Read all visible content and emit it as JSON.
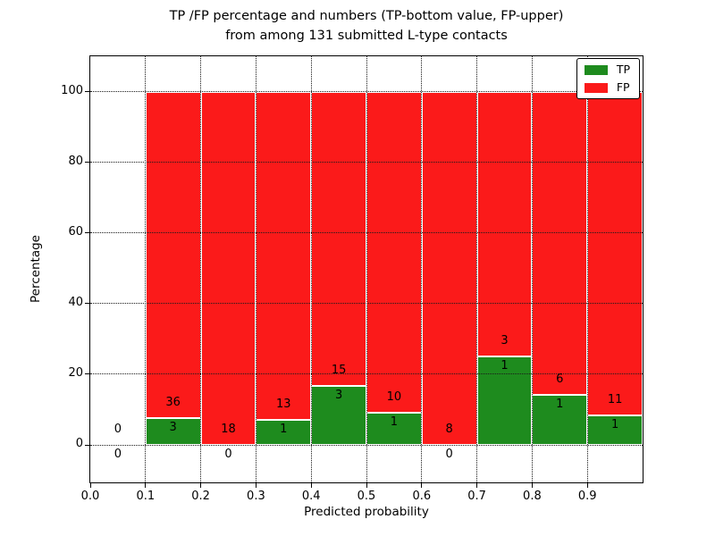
{
  "chart_data": {
    "type": "bar",
    "stacked": true,
    "title_lines": [
      "TP /FP percentage and numbers (TP-bottom value, FP-upper)",
      "from among 131 submitted L-type contacts"
    ],
    "xlabel": "Predicted probability",
    "ylabel": "Percentage",
    "xlim": [
      0.0,
      1.0
    ],
    "ylim": [
      -10.6,
      110.0
    ],
    "xticks": [
      "0.0",
      "0.1",
      "0.2",
      "0.3",
      "0.4",
      "0.5",
      "0.6",
      "0.7",
      "0.8",
      "0.9"
    ],
    "yticks": [
      0,
      20,
      40,
      60,
      80,
      100
    ],
    "grid": true,
    "grid_style": "dotted",
    "legend": {
      "position": "upper right",
      "entries": [
        {
          "label": "TP",
          "color": "#1e8b1e"
        },
        {
          "label": "FP",
          "color": "#fb1a1a"
        }
      ]
    },
    "total_contacts": 131,
    "bins": [
      {
        "range": [
          0.0,
          0.1
        ],
        "tp_count": 0,
        "fp_count": 0,
        "tp_pct": 0,
        "fp_pct": 0
      },
      {
        "range": [
          0.1,
          0.2
        ],
        "tp_count": 3,
        "fp_count": 36,
        "tp_pct": 7.69,
        "fp_pct": 92.31
      },
      {
        "range": [
          0.2,
          0.3
        ],
        "tp_count": 0,
        "fp_count": 18,
        "tp_pct": 0,
        "fp_pct": 100
      },
      {
        "range": [
          0.3,
          0.4
        ],
        "tp_count": 1,
        "fp_count": 13,
        "tp_pct": 7.14,
        "fp_pct": 92.86
      },
      {
        "range": [
          0.4,
          0.5
        ],
        "tp_count": 3,
        "fp_count": 15,
        "tp_pct": 16.67,
        "fp_pct": 83.33
      },
      {
        "range": [
          0.5,
          0.6
        ],
        "tp_count": 1,
        "fp_count": 10,
        "tp_pct": 9.09,
        "fp_pct": 90.91
      },
      {
        "range": [
          0.6,
          0.7
        ],
        "tp_count": 0,
        "fp_count": 8,
        "tp_pct": 0,
        "fp_pct": 100
      },
      {
        "range": [
          0.7,
          0.8
        ],
        "tp_count": 1,
        "fp_count": 3,
        "tp_pct": 25.0,
        "fp_pct": 75.0
      },
      {
        "range": [
          0.8,
          0.9
        ],
        "tp_count": 1,
        "fp_count": 6,
        "tp_pct": 14.29,
        "fp_pct": 85.71
      },
      {
        "range": [
          0.9,
          1.0
        ],
        "tp_count": 1,
        "fp_count": 11,
        "tp_pct": 8.33,
        "fp_pct": 91.67
      }
    ]
  },
  "colors": {
    "tp_green": "#1e8b1e",
    "fp_red": "#fb1a1a",
    "grid": "#1a1a1a",
    "text": "#000000",
    "background": "#ffffff"
  }
}
